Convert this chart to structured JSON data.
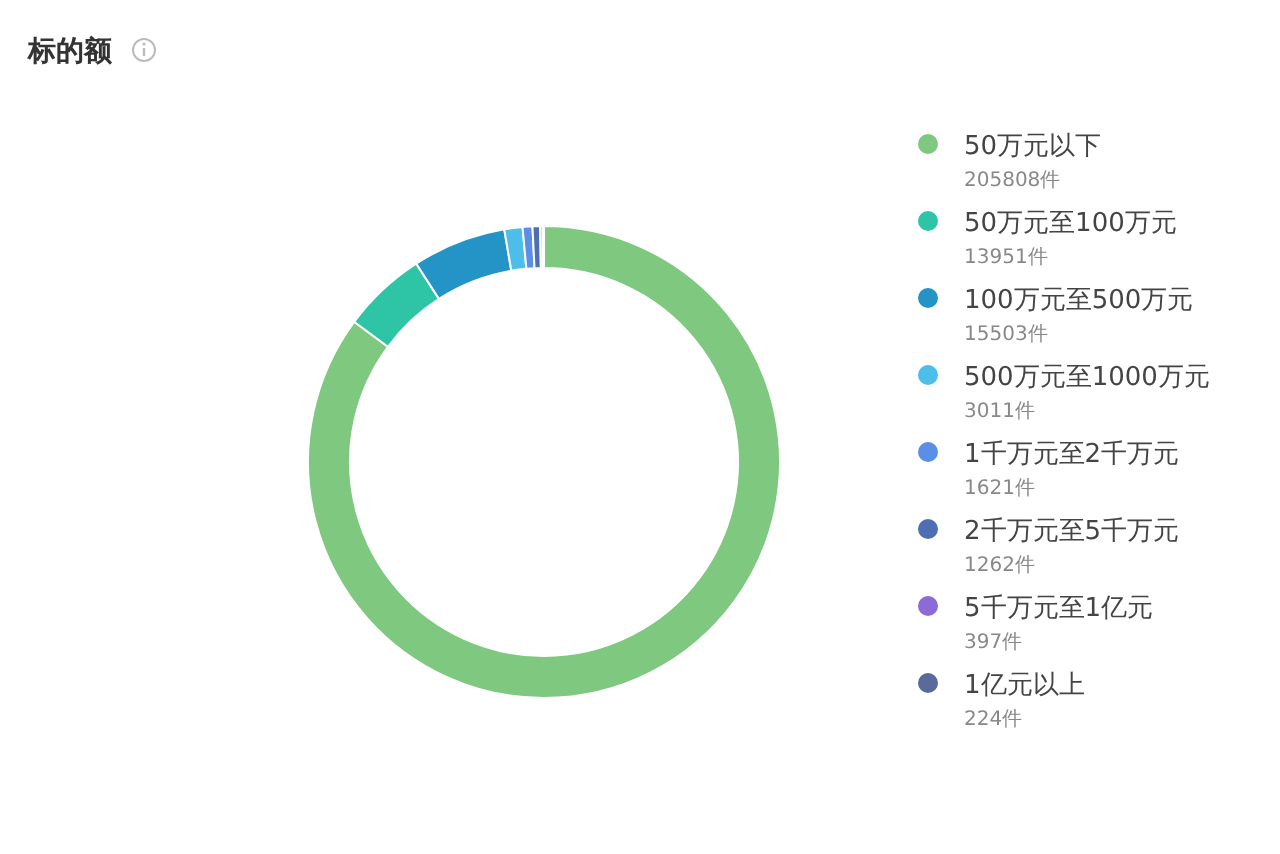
{
  "chart_data": {
    "type": "donut",
    "title": "标的额",
    "categories": [
      "50万元以下",
      "50万元至100万元",
      "100万元至500万元",
      "500万元至1000万元",
      "1千万元至2千万元",
      "2千万元至5千万元",
      "5千万元至1亿元",
      "1亿元以上"
    ],
    "values": [
      205808,
      13951,
      15503,
      3011,
      1621,
      1262,
      397,
      224
    ],
    "value_labels": [
      "205808件",
      "13951件",
      "15503件",
      "3011件",
      "1621件",
      "1262件",
      "397件",
      "224件"
    ],
    "colors": [
      "#7ec87f",
      "#2ec4a6",
      "#2493c6",
      "#4dbde9",
      "#5b8ee6",
      "#4f6fb5",
      "#8c6bd6",
      "#5a6b9b"
    ],
    "legend": "right"
  }
}
